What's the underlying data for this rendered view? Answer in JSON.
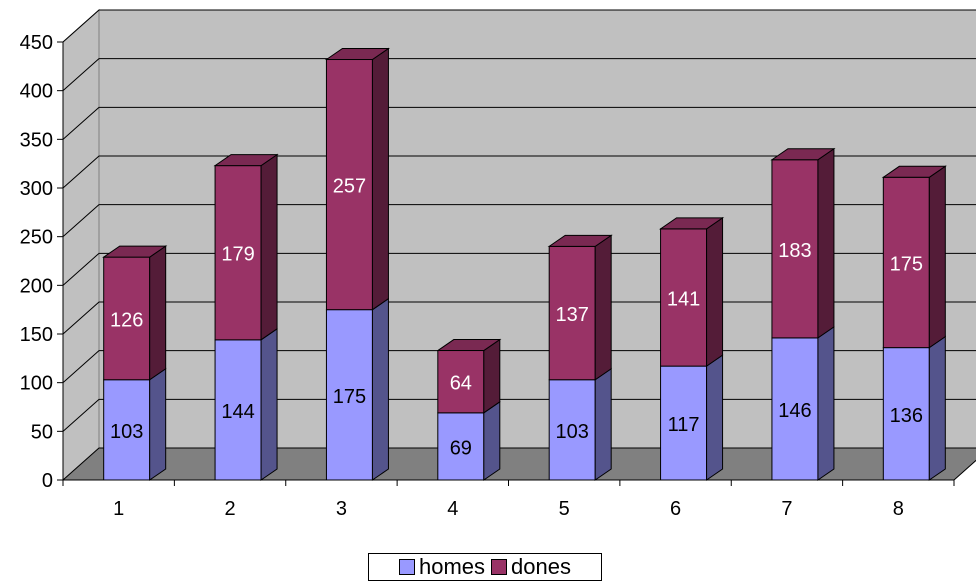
{
  "chart_data": {
    "type": "bar",
    "stacked": true,
    "three_d": true,
    "categories": [
      "1",
      "2",
      "3",
      "4",
      "5",
      "6",
      "7",
      "8"
    ],
    "series": [
      {
        "name": "homes",
        "values": [
          103,
          144,
          175,
          69,
          103,
          117,
          146,
          136
        ],
        "color": "#9999ff"
      },
      {
        "name": "dones",
        "values": [
          126,
          179,
          257,
          64,
          137,
          141,
          183,
          175
        ],
        "color": "#993366"
      }
    ],
    "title": "",
    "xlabel": "",
    "ylabel": "",
    "ylim": [
      0,
      450
    ],
    "yticks": [
      "0",
      "50",
      "100",
      "150",
      "200",
      "250",
      "300",
      "350",
      "400",
      "450"
    ],
    "grid": true,
    "legend": "bottom",
    "colors": {
      "wall": "#c0c0c0",
      "floor": "#808080",
      "gridline": "#000000"
    }
  }
}
